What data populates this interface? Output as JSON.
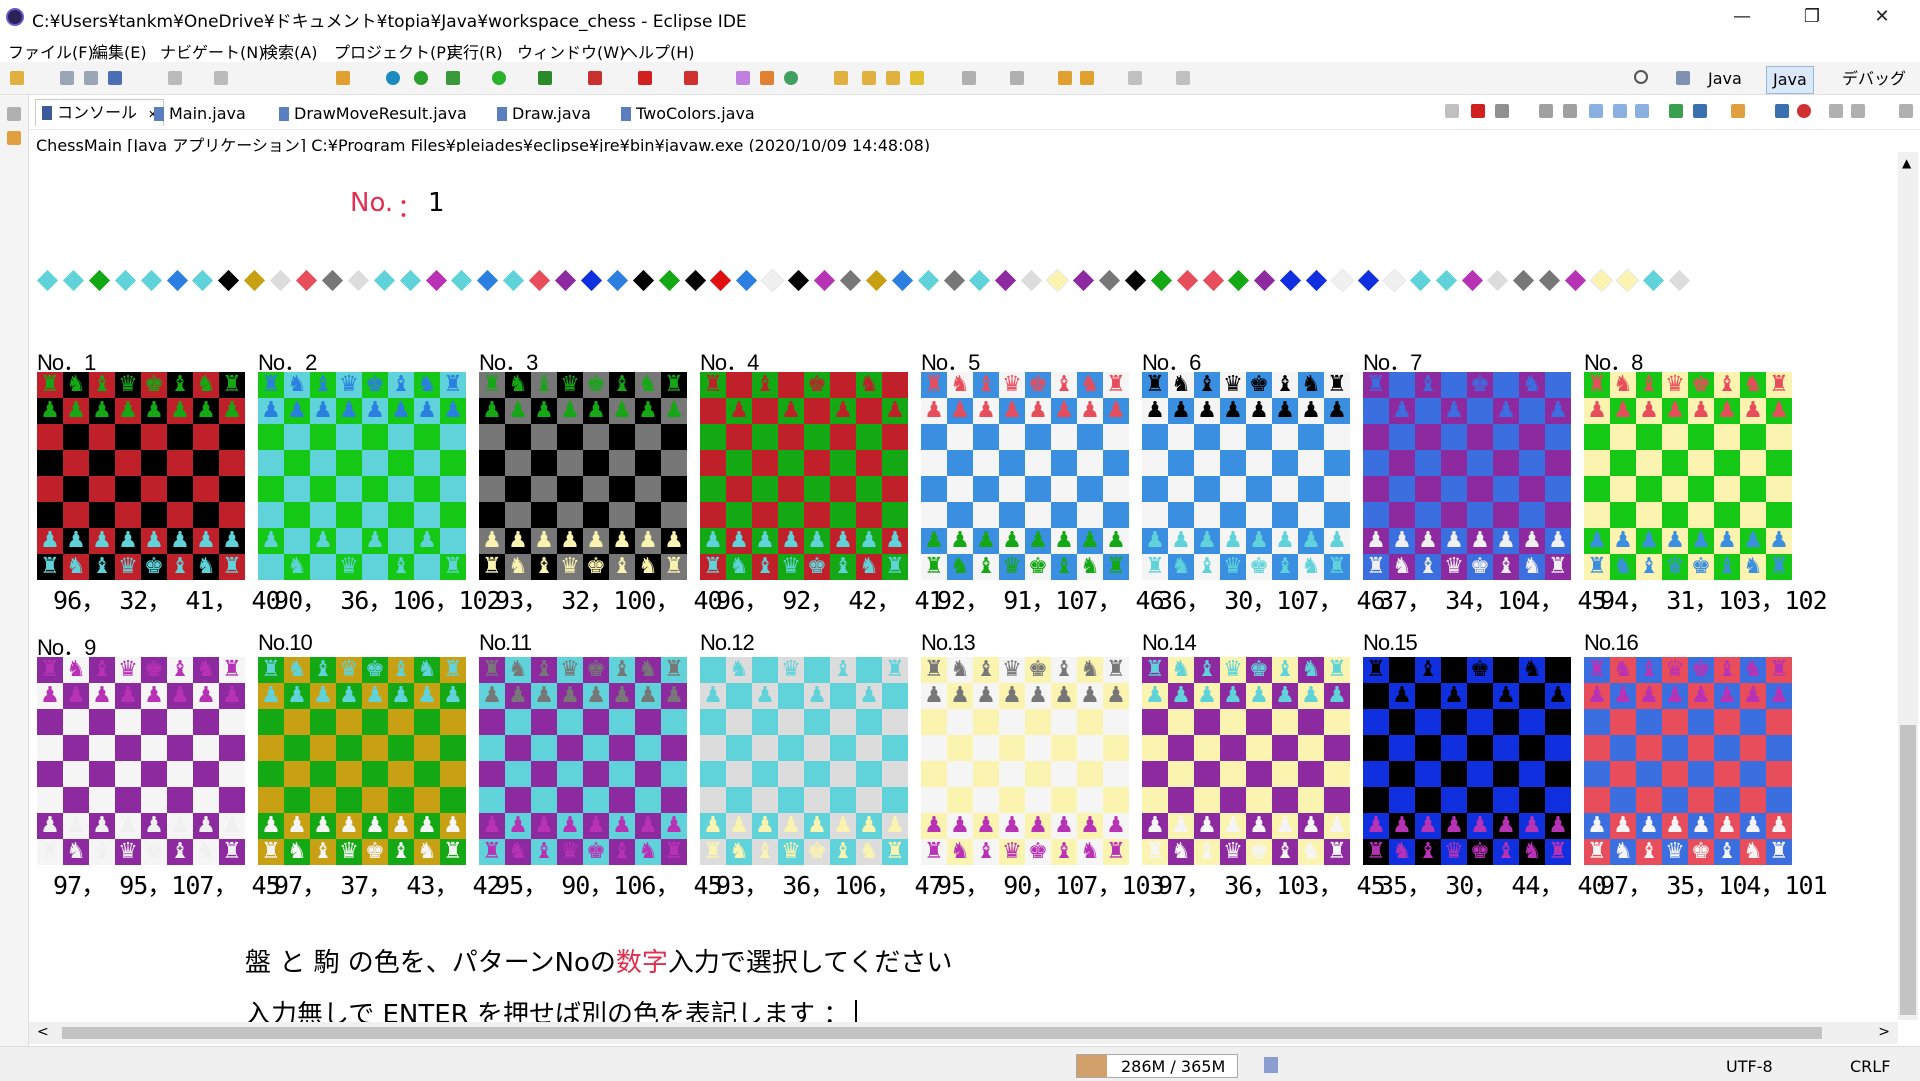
{
  "window": {
    "title": "C:¥Users¥tankm¥OneDrive¥ドキュメント¥topia¥Java¥workspace_chess - Eclipse IDE",
    "controls": [
      "—",
      "❐",
      "✕"
    ]
  },
  "menu": [
    "ファイル(F)",
    "編集(E)",
    "ナビゲート(N)",
    "検索(A)",
    "プロジェクト(P)",
    "実行(R)",
    "ウィンドウ(W)",
    "ヘルプ(H)"
  ],
  "perspectives": [
    "Java",
    "Java",
    "デバッグ"
  ],
  "tabs": [
    {
      "label": "コンソール",
      "close": "✕"
    },
    {
      "label": "Main.java"
    },
    {
      "label": "DrawMoveResult.java"
    },
    {
      "label": "Draw.java"
    },
    {
      "label": "TwoColors.java"
    }
  ],
  "console_header": "ChessMain [Java アプリケーション] C:¥Program Files¥pleiades¥eclipse¥jre¥bin¥javaw.exe  (2020/10/09 14:48:08)",
  "console": {
    "no_label": "No.",
    "no_colon": "：",
    "no_value": "1",
    "diamond_colors": [
      "#5fd3d9",
      "#5fd3d9",
      "#15a815",
      "#5fd3d9",
      "#5fd3d9",
      "#2b7fe0",
      "#5fd3d9",
      "#000000",
      "#c8a014",
      "#dcdcdc",
      "#e84d5b",
      "#777777",
      "#dcdcdc",
      "#5fd3d9",
      "#5fd3d9",
      "#b832b5",
      "#5fd3d9",
      "#2b7fe0",
      "#5fd3d9",
      "#e84d5b",
      "#8e2aa0",
      "#1030e0",
      "#2b7fe0",
      "#000000",
      "#15a815",
      "#000000",
      "#e01010",
      "#2b7fe0",
      "#f0f0f0",
      "#000000",
      "#b832b5",
      "#777777",
      "#c8a014",
      "#2b7fe0",
      "#5fd3d9",
      "#777777",
      "#5fd3d9",
      "#8e2aa0",
      "#dcdcdc",
      "#fbf3b0",
      "#8e2aa0",
      "#777777",
      "#000000",
      "#15a815",
      "#e84d5b",
      "#e84d5b",
      "#15a815",
      "#8e2aa0",
      "#1030e0",
      "#1030e0",
      "#f0f0f0",
      "#1030e0",
      "#f0f0f0",
      "#5fd3d9",
      "#5fd3d9",
      "#b832b5",
      "#dcdcdc",
      "#777777",
      "#777777",
      "#b832b5",
      "#fbf3b0",
      "#fbf3b0",
      "#5fd3d9",
      "#dcdcdc"
    ],
    "patterns": [
      {
        "label": "No．1",
        "vals": " 96， 32， 41， 40",
        "c1": "#000000",
        "c2": "#c0202a",
        "w": "#5fd3d9",
        "b": "#15a815"
      },
      {
        "label": "No．2",
        "vals": " 90， 36，106，102",
        "c1": "#5fd3d9",
        "c2": "#15c815",
        "w": "#5fd3d9",
        "b": "#2b7fe0"
      },
      {
        "label": "No．3",
        "vals": " 93， 32，100， 40",
        "c1": "#000000",
        "c2": "#777777",
        "w": "#fbf3b0",
        "b": "#15a815"
      },
      {
        "label": "No．4",
        "vals": " 96， 92， 42， 41",
        "c1": "#c0202a",
        "c2": "#15a815",
        "w": "#5fd3d9",
        "b": "#c0202a"
      },
      {
        "label": "No．5",
        "vals": " 92， 91，107， 46",
        "c1": "#f5f5f5",
        "c2": "#3b8fe0",
        "w": "#15a815",
        "b": "#e84d5b"
      },
      {
        "label": "No．6",
        "vals": " 36， 30，107， 46",
        "c1": "#f5f5f5",
        "c2": "#3b8fe0",
        "w": "#5fd3d9",
        "b": "#000000"
      },
      {
        "label": "No．7",
        "vals": " 37， 34，104， 45",
        "c1": "#3b6fe0",
        "c2": "#8e2aa0",
        "w": "#f0f0f0",
        "b": "#3b6fe0"
      },
      {
        "label": "No．8",
        "vals": " 94， 31，103，102",
        "c1": "#fbf3b0",
        "c2": "#15c815",
        "w": "#3b8fe0",
        "b": "#e84d5b"
      },
      {
        "label": "No．9",
        "vals": " 97， 95，107， 45",
        "c1": "#f5f5f5",
        "c2": "#8e2aa0",
        "w": "#f0f0f0",
        "b": "#b832b5"
      },
      {
        "label": "No.10",
        "vals": " 97， 37， 43， 42",
        "c1": "#c8a014",
        "c2": "#15a815",
        "w": "#f5f5f5",
        "b": "#5fd3d9"
      },
      {
        "label": "No.11",
        "vals": " 95， 90，106， 45",
        "c1": "#5fd3d9",
        "c2": "#8e2aa0",
        "w": "#b832b5",
        "b": "#777777"
      },
      {
        "label": "No.12",
        "vals": " 93， 36，106， 47",
        "c1": "#dcdcdc",
        "c2": "#5fd3d9",
        "w": "#fbf3b0",
        "b": "#5fd3d9"
      },
      {
        "label": "No.13",
        "vals": " 95， 90，107，103",
        "c1": "#f5f5f5",
        "c2": "#fbf3b0",
        "w": "#b832b5",
        "b": "#777777"
      },
      {
        "label": "No.14",
        "vals": " 97， 36，103， 45",
        "c1": "#fbf3b0",
        "c2": "#8e2aa0",
        "w": "#f5f5f5",
        "b": "#5fd3d9"
      },
      {
        "label": "No.15",
        "vals": " 35， 30， 44， 40",
        "c1": "#000000",
        "c2": "#1030e0",
        "w": "#b832b5",
        "b": "#000000"
      },
      {
        "label": "No.16",
        "vals": " 97， 35，104，101",
        "c1": "#e84d5b",
        "c2": "#3b6fe0",
        "w": "#f5f5f5",
        "b": "#b832b5"
      }
    ],
    "prompt_line1_a": "盤 と 駒 の色を、パターンNoの",
    "prompt_line1_red": "数字",
    "prompt_line1_b": "入力で選択してください",
    "prompt_line2": "入力無しで ENTER を押せば別の色を表記します ："
  },
  "status": {
    "memory": "286M / 365M",
    "encoding": "UTF-8",
    "line_ending": "CRLF"
  }
}
